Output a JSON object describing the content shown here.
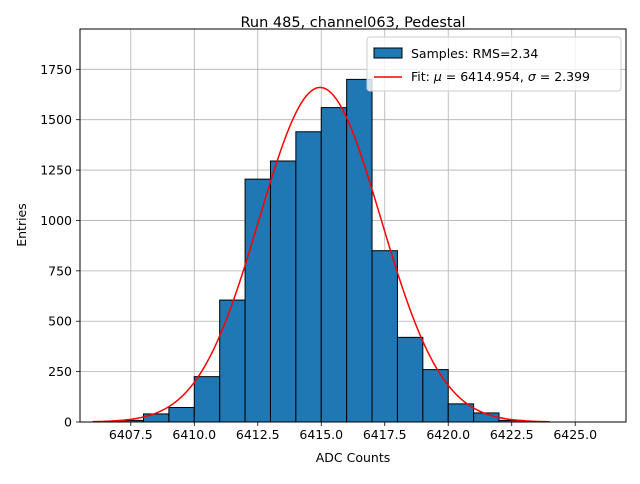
{
  "chart_data": {
    "type": "bar",
    "title": "Run 485, channel063, Pedestal",
    "xlabel": "ADC Counts",
    "ylabel": "Entries",
    "xlim": [
      6405.5,
      6427.0
    ],
    "ylim": [
      0,
      1950
    ],
    "xticks": [
      6407.5,
      6410.0,
      6412.5,
      6415.0,
      6417.5,
      6420.0,
      6422.5,
      6425.0
    ],
    "xtick_labels": [
      "6407.5",
      "6410.0",
      "6412.5",
      "6415.0",
      "6417.5",
      "6420.0",
      "6422.5",
      "6425.0"
    ],
    "yticks": [
      0,
      250,
      500,
      750,
      1000,
      1250,
      1500,
      1750
    ],
    "ytick_labels": [
      "0",
      "250",
      "500",
      "750",
      "1000",
      "1250",
      "1500",
      "1750"
    ],
    "grid": true,
    "legend_position": "top-right",
    "bin_width": 1,
    "bins": [
      {
        "start": 6407,
        "value": 8
      },
      {
        "start": 6408,
        "value": 40
      },
      {
        "start": 6409,
        "value": 72
      },
      {
        "start": 6410,
        "value": 225
      },
      {
        "start": 6411,
        "value": 605
      },
      {
        "start": 6412,
        "value": 1205
      },
      {
        "start": 6413,
        "value": 1295
      },
      {
        "start": 6414,
        "value": 1440
      },
      {
        "start": 6415,
        "value": 1560
      },
      {
        "start": 6416,
        "value": 1700
      },
      {
        "start": 6417,
        "value": 850
      },
      {
        "start": 6418,
        "value": 420
      },
      {
        "start": 6419,
        "value": 260
      },
      {
        "start": 6420,
        "value": 90
      },
      {
        "start": 6421,
        "value": 45
      },
      {
        "start": 6422,
        "value": 8
      }
    ],
    "fit": {
      "mu": 6414.954,
      "sigma": 2.399,
      "amplitude": 1660,
      "x_range": [
        6406.0,
        6424.0
      ]
    },
    "series": [
      {
        "name": "Samples: RMS=2.34",
        "kind": "histogram",
        "color": "#1f77b4"
      },
      {
        "name_prefix": "Fit: ",
        "mu_text": "6414.954",
        "sigma_text": "2.399",
        "kind": "line",
        "color": "#ff0000"
      }
    ]
  }
}
